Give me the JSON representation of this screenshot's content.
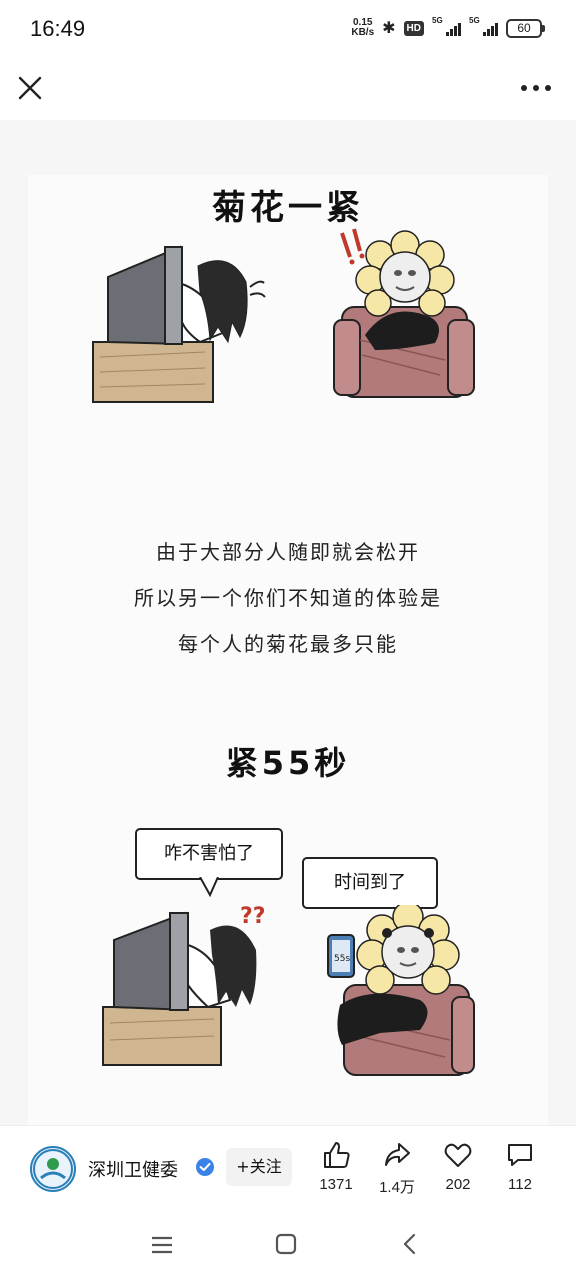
{
  "status": {
    "time": "16:49",
    "net_speed_value": "0.15",
    "net_speed_unit": "KB/s",
    "hd_label": "HD",
    "network1": "5G",
    "network2": "5G",
    "battery": "60"
  },
  "header": {
    "close_icon": "close-icon",
    "more_icon": "more-icon"
  },
  "article": {
    "title_top": "菊花一紧",
    "lines": [
      "由于大部分人随即就会松开",
      "所以另一个你们不知道的体验是",
      "每个人的菊花最多只能"
    ],
    "title_bottom": "紧55秒",
    "bubble_left": "咋不害怕了",
    "bubble_right": "时间到了",
    "phone_screen_text": "55s"
  },
  "author": {
    "name": "深圳卫健委",
    "follow_label": "+关注"
  },
  "actions": {
    "like_count": "1371",
    "share_count": "1.4万",
    "favorite_count": "202",
    "comment_count": "112"
  },
  "nav": {
    "menu_icon": "menu-icon",
    "home_icon": "home-icon",
    "back_icon": "back-icon"
  }
}
